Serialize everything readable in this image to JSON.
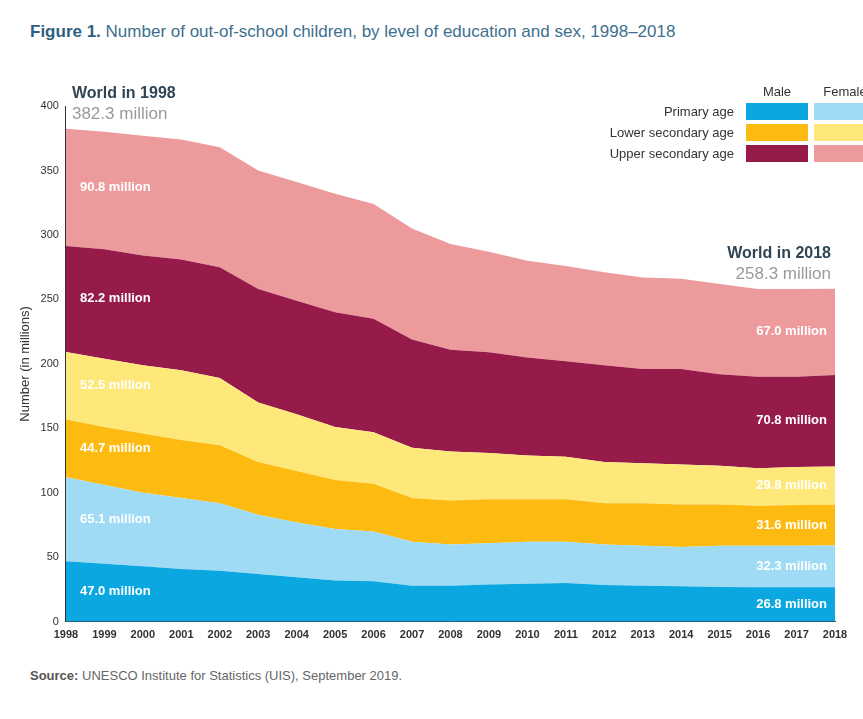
{
  "chart_data": {
    "type": "area",
    "title": "Figure 1. Number of out-of-school children, by level of education and sex, 1998–2018",
    "y_label": "Number (in millions)",
    "categories": [
      "1998",
      "1999",
      "2000",
      "2001",
      "2002",
      "2003",
      "2004",
      "2005",
      "2006",
      "2007",
      "2008",
      "2009",
      "2010",
      "2011",
      "2012",
      "2013",
      "2014",
      "2015",
      "2016",
      "2017",
      "2018"
    ],
    "series": [
      {
        "name": "Primary age",
        "sex": "Male",
        "color": "#0ba7e0",
        "values": [
          47.0,
          45,
          43,
          41,
          39.5,
          37,
          34.5,
          32,
          31.5,
          28,
          28,
          29,
          29.5,
          30,
          28.5,
          28,
          27.5,
          27,
          26.8,
          26.8,
          26.8
        ],
        "value_labels": [
          "47.0 million",
          null,
          null,
          null,
          null,
          null,
          null,
          null,
          null,
          null,
          null,
          null,
          null,
          null,
          null,
          null,
          null,
          null,
          null,
          null,
          "26.8 million"
        ]
      },
      {
        "name": "Primary age",
        "sex": "Female",
        "color": "#9fdbf5",
        "values": [
          65.1,
          61,
          57,
          55,
          52.5,
          46,
          42.5,
          40,
          38.5,
          34,
          32,
          32,
          32.5,
          32,
          31.5,
          31,
          30.5,
          32,
          32.2,
          32.2,
          32.3
        ],
        "value_labels": [
          "65.1 million",
          null,
          null,
          null,
          null,
          null,
          null,
          null,
          null,
          null,
          null,
          null,
          null,
          null,
          null,
          null,
          null,
          null,
          null,
          null,
          "32.3 million"
        ]
      },
      {
        "name": "Lower secondary age",
        "sex": "Male",
        "color": "#fdbb12",
        "values": [
          44.7,
          45,
          46,
          45,
          45,
          41,
          40,
          38,
          37,
          34,
          34,
          34,
          33,
          33,
          32,
          33,
          33,
          32,
          31,
          31.5,
          31.6
        ],
        "value_labels": [
          "44.7 million",
          null,
          null,
          null,
          null,
          null,
          null,
          null,
          null,
          null,
          null,
          null,
          null,
          null,
          null,
          null,
          null,
          null,
          null,
          null,
          "31.6 million"
        ]
      },
      {
        "name": "Lower secondary age",
        "sex": "Female",
        "color": "#fee87a",
        "values": [
          52.5,
          53,
          53,
          54,
          52,
          46,
          44,
          41,
          40,
          39,
          38,
          36,
          34,
          33,
          32,
          31,
          31,
          30,
          29,
          29.5,
          29.8
        ],
        "value_labels": [
          "52.5 million",
          null,
          null,
          null,
          null,
          null,
          null,
          null,
          null,
          null,
          null,
          null,
          null,
          null,
          null,
          null,
          null,
          null,
          null,
          null,
          "29.8 million"
        ]
      },
      {
        "name": "Upper secondary age",
        "sex": "Male",
        "color": "#961b4a",
        "values": [
          82.2,
          85,
          85,
          86,
          86,
          88,
          88,
          89,
          88,
          84,
          79,
          78,
          76,
          74,
          75,
          73,
          74,
          71,
          71,
          70,
          70.8
        ],
        "value_labels": [
          "82.2 million",
          null,
          null,
          null,
          null,
          null,
          null,
          null,
          null,
          null,
          null,
          null,
          null,
          null,
          null,
          null,
          null,
          null,
          null,
          null,
          "70.8 million"
        ]
      },
      {
        "name": "Upper secondary age",
        "sex": "Female",
        "color": "#ec9a9c",
        "values": [
          90.8,
          91,
          93,
          93,
          93,
          92,
          92,
          92,
          89,
          86,
          82,
          78,
          75,
          74,
          72,
          71,
          70,
          70,
          68,
          68,
          67.0
        ],
        "value_labels": [
          "90.8 million",
          null,
          null,
          null,
          null,
          null,
          null,
          null,
          null,
          null,
          null,
          null,
          null,
          null,
          null,
          null,
          null,
          null,
          null,
          null,
          "67.0 million"
        ]
      }
    ],
    "stacked": true,
    "data_labels": true,
    "grid": false,
    "legend": "upper right",
    "ylim": [
      0,
      400
    ],
    "yticks": [
      0,
      50,
      100,
      150,
      200,
      250,
      300,
      350,
      400
    ],
    "annotations": [
      {
        "x": "1998",
        "title": "World in 1998",
        "value": 382.3,
        "label": "382.3 million"
      },
      {
        "x": "2018",
        "title": "World in 2018",
        "value": 258.3,
        "label": "258.3 million"
      }
    ],
    "source": {
      "label": "Source:",
      "text": "UNESCO Institute for Statistics (UIS), September 2019."
    }
  }
}
